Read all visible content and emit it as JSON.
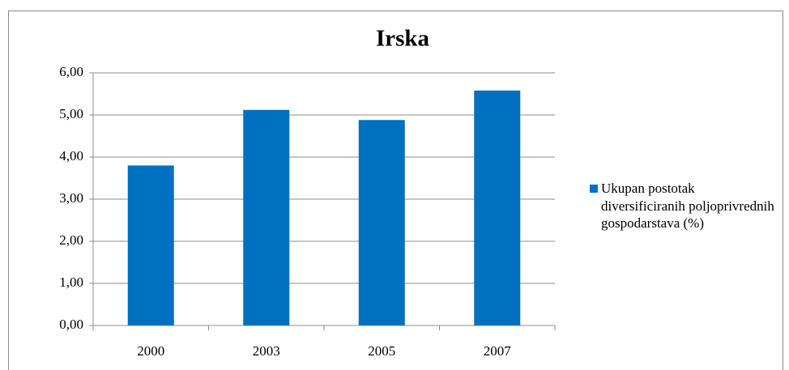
{
  "chart_data": {
    "type": "bar",
    "title": "Irska",
    "categories": [
      "2000",
      "2003",
      "2005",
      "2007"
    ],
    "series": [
      {
        "name": "Ukupan postotak diversificiranih poljoprivrednih gospodarstava (%)",
        "color": "#0070c0",
        "values": [
          3.8,
          5.12,
          4.88,
          5.58
        ]
      }
    ],
    "ylim": [
      0,
      6
    ],
    "yticks": [
      {
        "value": 0,
        "label": "0,00"
      },
      {
        "value": 1,
        "label": "1,00"
      },
      {
        "value": 2,
        "label": "2,00"
      },
      {
        "value": 3,
        "label": "3,00"
      },
      {
        "value": 4,
        "label": "4,00"
      },
      {
        "value": 5,
        "label": "5,00"
      },
      {
        "value": 6,
        "label": "6,00"
      }
    ],
    "grid": true,
    "legend": "right"
  }
}
